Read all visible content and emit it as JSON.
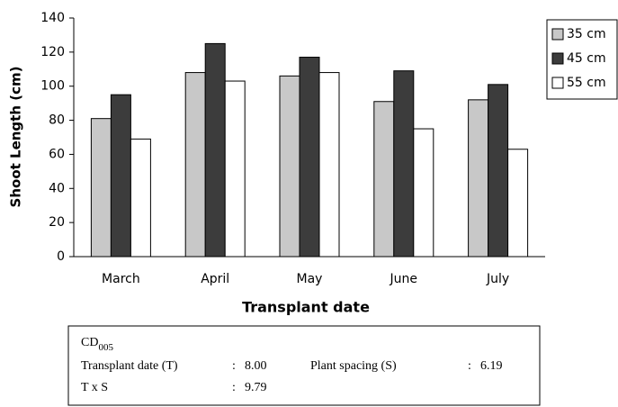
{
  "chart_data": {
    "type": "bar",
    "ylabel": "Shoot Length (cm)",
    "xlabel": "Transplant date",
    "categories": [
      "March",
      "April",
      "May",
      "June",
      "July"
    ],
    "series": [
      {
        "name": "35 cm",
        "color": "#c8c8c8",
        "values": [
          81,
          108,
          106,
          91,
          92
        ]
      },
      {
        "name": "45 cm",
        "color": "#3c3c3c",
        "values": [
          95,
          125,
          117,
          109,
          101
        ]
      },
      {
        "name": "55 cm",
        "color": "#ffffff",
        "values": [
          69,
          103,
          108,
          75,
          63
        ]
      }
    ],
    "ylim": [
      0,
      140
    ],
    "yticks": [
      0,
      20,
      40,
      60,
      80,
      100,
      120,
      140
    ],
    "legend": "right"
  },
  "stats_box": {
    "cd_label": "CD",
    "cd_subscript": "005",
    "sep": ":",
    "rows": [
      [
        {
          "label": "Transplant date (T)",
          "value": "8.00"
        },
        {
          "label": "Plant spacing (S)",
          "value": "6.19"
        }
      ],
      [
        {
          "label": "T x S",
          "value": "9.79"
        }
      ]
    ]
  }
}
